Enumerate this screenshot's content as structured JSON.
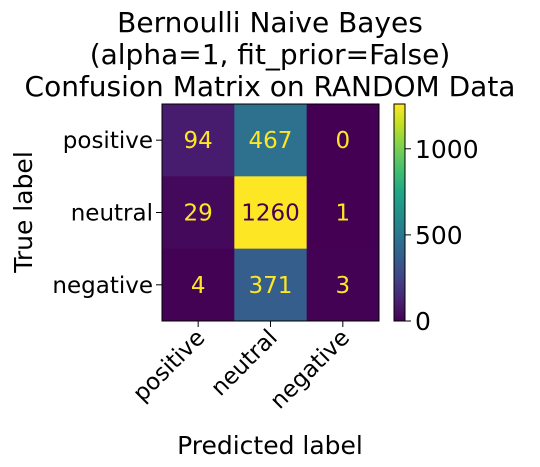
{
  "chart_data": {
    "type": "heatmap",
    "title": [
      "Bernoulli Naive Bayes",
      "(alpha=1, fit_prior=False)",
      "Confusion Matrix on RANDOM Data"
    ],
    "xlabel": "Predicted label",
    "ylabel": "True label",
    "row_labels": [
      "positive",
      "neutral",
      "negative"
    ],
    "col_labels": [
      "positive",
      "neutral",
      "negative"
    ],
    "matrix": [
      [
        94,
        467,
        0
      ],
      [
        29,
        1260,
        1
      ],
      [
        4,
        371,
        3
      ]
    ],
    "colormap": "viridis",
    "vmin": 0,
    "vmax": 1260,
    "colorbar_ticks": [
      0,
      500,
      1000
    ],
    "text_color_dark_cells": "#fde725",
    "text_color_light_cells": "#440154",
    "grid": false
  }
}
